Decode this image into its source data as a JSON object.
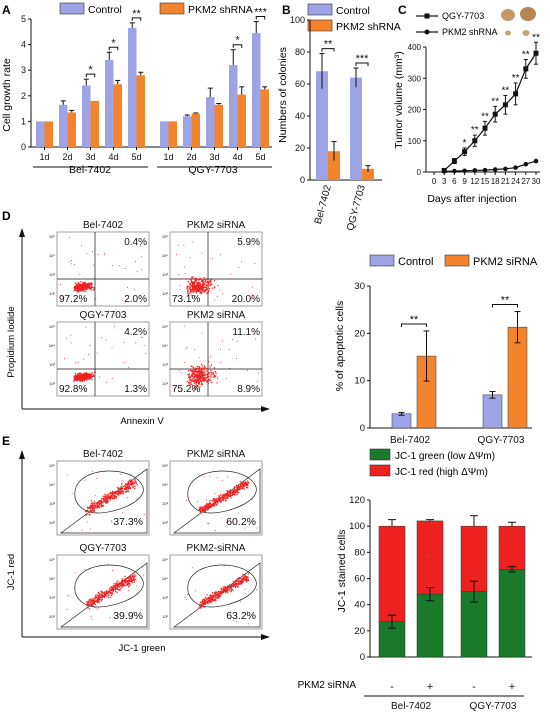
{
  "panels": {
    "A": {
      "letter": "A",
      "ylabel": "Cell growth rate",
      "legend": [
        "Control",
        "PKM2 shRNA"
      ],
      "groups": [
        "Bel-7402",
        "QGY-7703"
      ]
    },
    "B": {
      "letter": "B",
      "ylabel": "Numbers of colonies",
      "legend": [
        "Control",
        "PKM2 shRNA"
      ]
    },
    "C": {
      "letter": "C",
      "ylabel": "Tumor volume (mm³)",
      "xlabel": "Days after injection",
      "legend": [
        "QGY-7703",
        "PKM2 shRNA"
      ]
    },
    "D": {
      "letter": "D",
      "flow_titles": [
        "Bel-7402",
        "PKM2 siRNA",
        "QGY-7703",
        "PKM2 siRNA"
      ],
      "flow_percents": [
        [
          "0.4%",
          "97.2%",
          "2.0%"
        ],
        [
          "5.9%",
          "73.1%",
          "20.0%"
        ],
        [
          "4.2%",
          "92.8%",
          "1.3%"
        ],
        [
          "11.1%",
          "75.2%",
          "8.9%"
        ]
      ],
      "flow_ylabel": "Propidium Iodide",
      "flow_xlabel": "Annexin V",
      "ylabel": "% of apoptotic cells",
      "legend": [
        "Control",
        "PKM2 siRNA"
      ]
    },
    "E": {
      "letter": "E",
      "flow_titles": [
        "Bel-7402",
        "PKM2 siRNA",
        "QGY-7703",
        "PKM2-siRNA"
      ],
      "flow_percents": [
        "37.3%",
        "60.2%",
        "39.9%",
        "63.2%"
      ],
      "flow_ylabel": "JC-1 red",
      "flow_xlabel": "JC-1 green",
      "ylabel": "JC-1 stained cells",
      "legend": [
        "JC-1 green (low ΔΨm)",
        "JC-1 red (high ΔΨm)"
      ],
      "treatment_label": "PKM2 siRNA",
      "treatment_marks": [
        "-",
        "+",
        "-",
        "+"
      ]
    }
  },
  "colors": {
    "control": "#9ea3e6",
    "shrna": "#f4842c",
    "green": "#1a7a2a",
    "red": "#ee2020",
    "dots": "#ee2222"
  },
  "chart_data": [
    {
      "panel": "A",
      "type": "bar",
      "ylabel": "Cell growth rate",
      "ylim": [
        0,
        5
      ],
      "yticks": [
        0,
        1,
        2,
        3,
        4,
        5
      ],
      "categories": [
        "1d",
        "2d",
        "3d",
        "4d",
        "5d"
      ],
      "groups": [
        {
          "name": "Bel-7402",
          "series": [
            {
              "name": "Control",
              "values": [
                1.0,
                1.65,
                2.4,
                3.4,
                4.65
              ],
              "errors": [
                0.0,
                0.15,
                0.25,
                0.3,
                0.2
              ]
            },
            {
              "name": "PKM2 shRNA",
              "values": [
                1.0,
                1.35,
                1.8,
                2.45,
                2.8
              ],
              "errors": [
                0.0,
                0.08,
                0.0,
                0.15,
                0.12
              ]
            }
          ],
          "significance": [
            "",
            "",
            "*",
            "*",
            "**"
          ]
        },
        {
          "name": "QGY-7703",
          "series": [
            {
              "name": "Control",
              "values": [
                1.0,
                1.2,
                1.95,
                3.2,
                4.45
              ],
              "errors": [
                0.0,
                0.05,
                0.35,
                0.6,
                0.45
              ]
            },
            {
              "name": "PKM2 shRNA",
              "values": [
                1.0,
                1.3,
                1.65,
                2.05,
                2.25
              ],
              "errors": [
                0.0,
                0.03,
                0.05,
                0.3,
                0.1
              ]
            }
          ],
          "significance": [
            "",
            "",
            "",
            "*",
            "***"
          ]
        }
      ]
    },
    {
      "panel": "B",
      "type": "bar",
      "ylabel": "Numbers of colonies",
      "ylim": [
        0,
        100
      ],
      "yticks": [
        0,
        20,
        40,
        60,
        80,
        100
      ],
      "categories": [
        "Bel-7402",
        "QGY-7703"
      ],
      "series": [
        {
          "name": "Control",
          "values": [
            68,
            64
          ],
          "errors": [
            11,
            6
          ]
        },
        {
          "name": "PKM2 shRNA",
          "values": [
            18,
            7
          ],
          "errors": [
            6,
            2
          ]
        }
      ],
      "significance": [
        "**",
        "***"
      ]
    },
    {
      "panel": "C",
      "type": "line",
      "ylabel": "Tumor volume (mm³)",
      "xlabel": "Days after injection",
      "xlim": [
        0,
        30
      ],
      "ylim": [
        0,
        400
      ],
      "xticks": [
        0,
        3,
        6,
        9,
        12,
        15,
        18,
        21,
        24,
        27,
        30
      ],
      "yticks": [
        0,
        100,
        200,
        300,
        400
      ],
      "series": [
        {
          "name": "QGY-7703",
          "x": [
            3,
            6,
            9,
            12,
            15,
            18,
            21,
            24,
            27,
            30
          ],
          "y": [
            5,
            35,
            65,
            100,
            140,
            185,
            215,
            250,
            330,
            380
          ],
          "errors": [
            3,
            8,
            12,
            18,
            22,
            25,
            30,
            35,
            30,
            35
          ]
        },
        {
          "name": "PKM2 shRNA",
          "x": [
            3,
            6,
            9,
            12,
            15,
            18,
            21,
            24,
            27,
            30
          ],
          "y": [
            2,
            3,
            4,
            5,
            6,
            8,
            10,
            14,
            25,
            35
          ],
          "errors": [
            1,
            1,
            1,
            1,
            2,
            2,
            3,
            3,
            4,
            4
          ]
        }
      ],
      "significance": [
        "",
        "",
        "*",
        "**",
        "**",
        "**",
        "**",
        "**",
        "**",
        "**"
      ]
    },
    {
      "panel": "D",
      "type": "bar",
      "ylabel": "% of apoptotic cells",
      "ylim": [
        0,
        30
      ],
      "yticks": [
        0,
        10,
        20,
        30
      ],
      "categories": [
        "Bel-7402",
        "QGY-7703"
      ],
      "series": [
        {
          "name": "Control",
          "values": [
            3,
            7
          ],
          "errors": [
            0.3,
            0.7
          ]
        },
        {
          "name": "PKM2 siRNA",
          "values": [
            15.2,
            21.3
          ],
          "errors": [
            5.3,
            3.3
          ]
        }
      ],
      "significance": [
        "**",
        "**"
      ]
    },
    {
      "panel": "E",
      "type": "bar",
      "stacked": true,
      "ylabel": "JC-1 stained cells",
      "ylim": [
        0,
        120
      ],
      "yticks": [
        0,
        20,
        40,
        60,
        80,
        100,
        120
      ],
      "categories": [
        "Bel-7402 -",
        "Bel-7402 +",
        "QGY-7703 -",
        "QGY-7703 +"
      ],
      "series": [
        {
          "name": "JC-1 green (low ΔΨm)",
          "values": [
            27,
            48,
            50,
            67
          ],
          "errors": [
            5,
            5,
            8,
            2
          ]
        },
        {
          "name": "JC-1 red (high ΔΨm)",
          "values": [
            73,
            56,
            50,
            33
          ],
          "errors": [
            5,
            1,
            8,
            3
          ]
        }
      ],
      "significance": [
        "",
        "**",
        "",
        "*"
      ]
    }
  ]
}
